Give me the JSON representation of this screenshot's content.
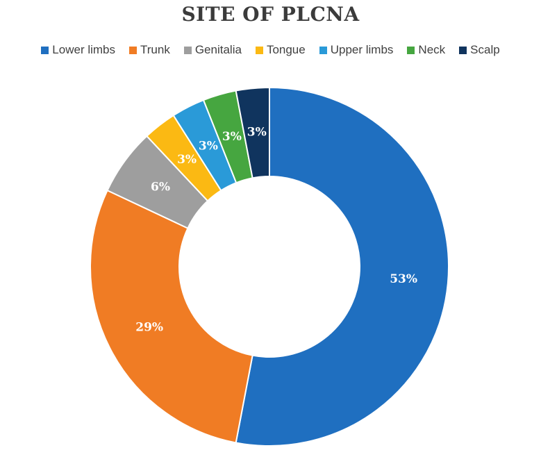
{
  "chart_data": {
    "type": "pie",
    "variant": "donut",
    "title": "SITE OF PLCNA",
    "legend_position": "top",
    "categories": [
      "Lower limbs",
      "Trunk",
      "Genitalia",
      "Tongue",
      "Upper limbs",
      "Neck",
      "Scalp"
    ],
    "values": [
      53,
      29,
      6,
      3,
      3,
      3,
      3
    ],
    "labels": [
      "53%",
      "29%",
      "6%",
      "3%",
      "3%",
      "3%",
      "3%"
    ],
    "colors": [
      "#1f6fc0",
      "#f07c24",
      "#9e9e9e",
      "#fbb913",
      "#2a9ad8",
      "#46a640",
      "#10345e"
    ]
  }
}
